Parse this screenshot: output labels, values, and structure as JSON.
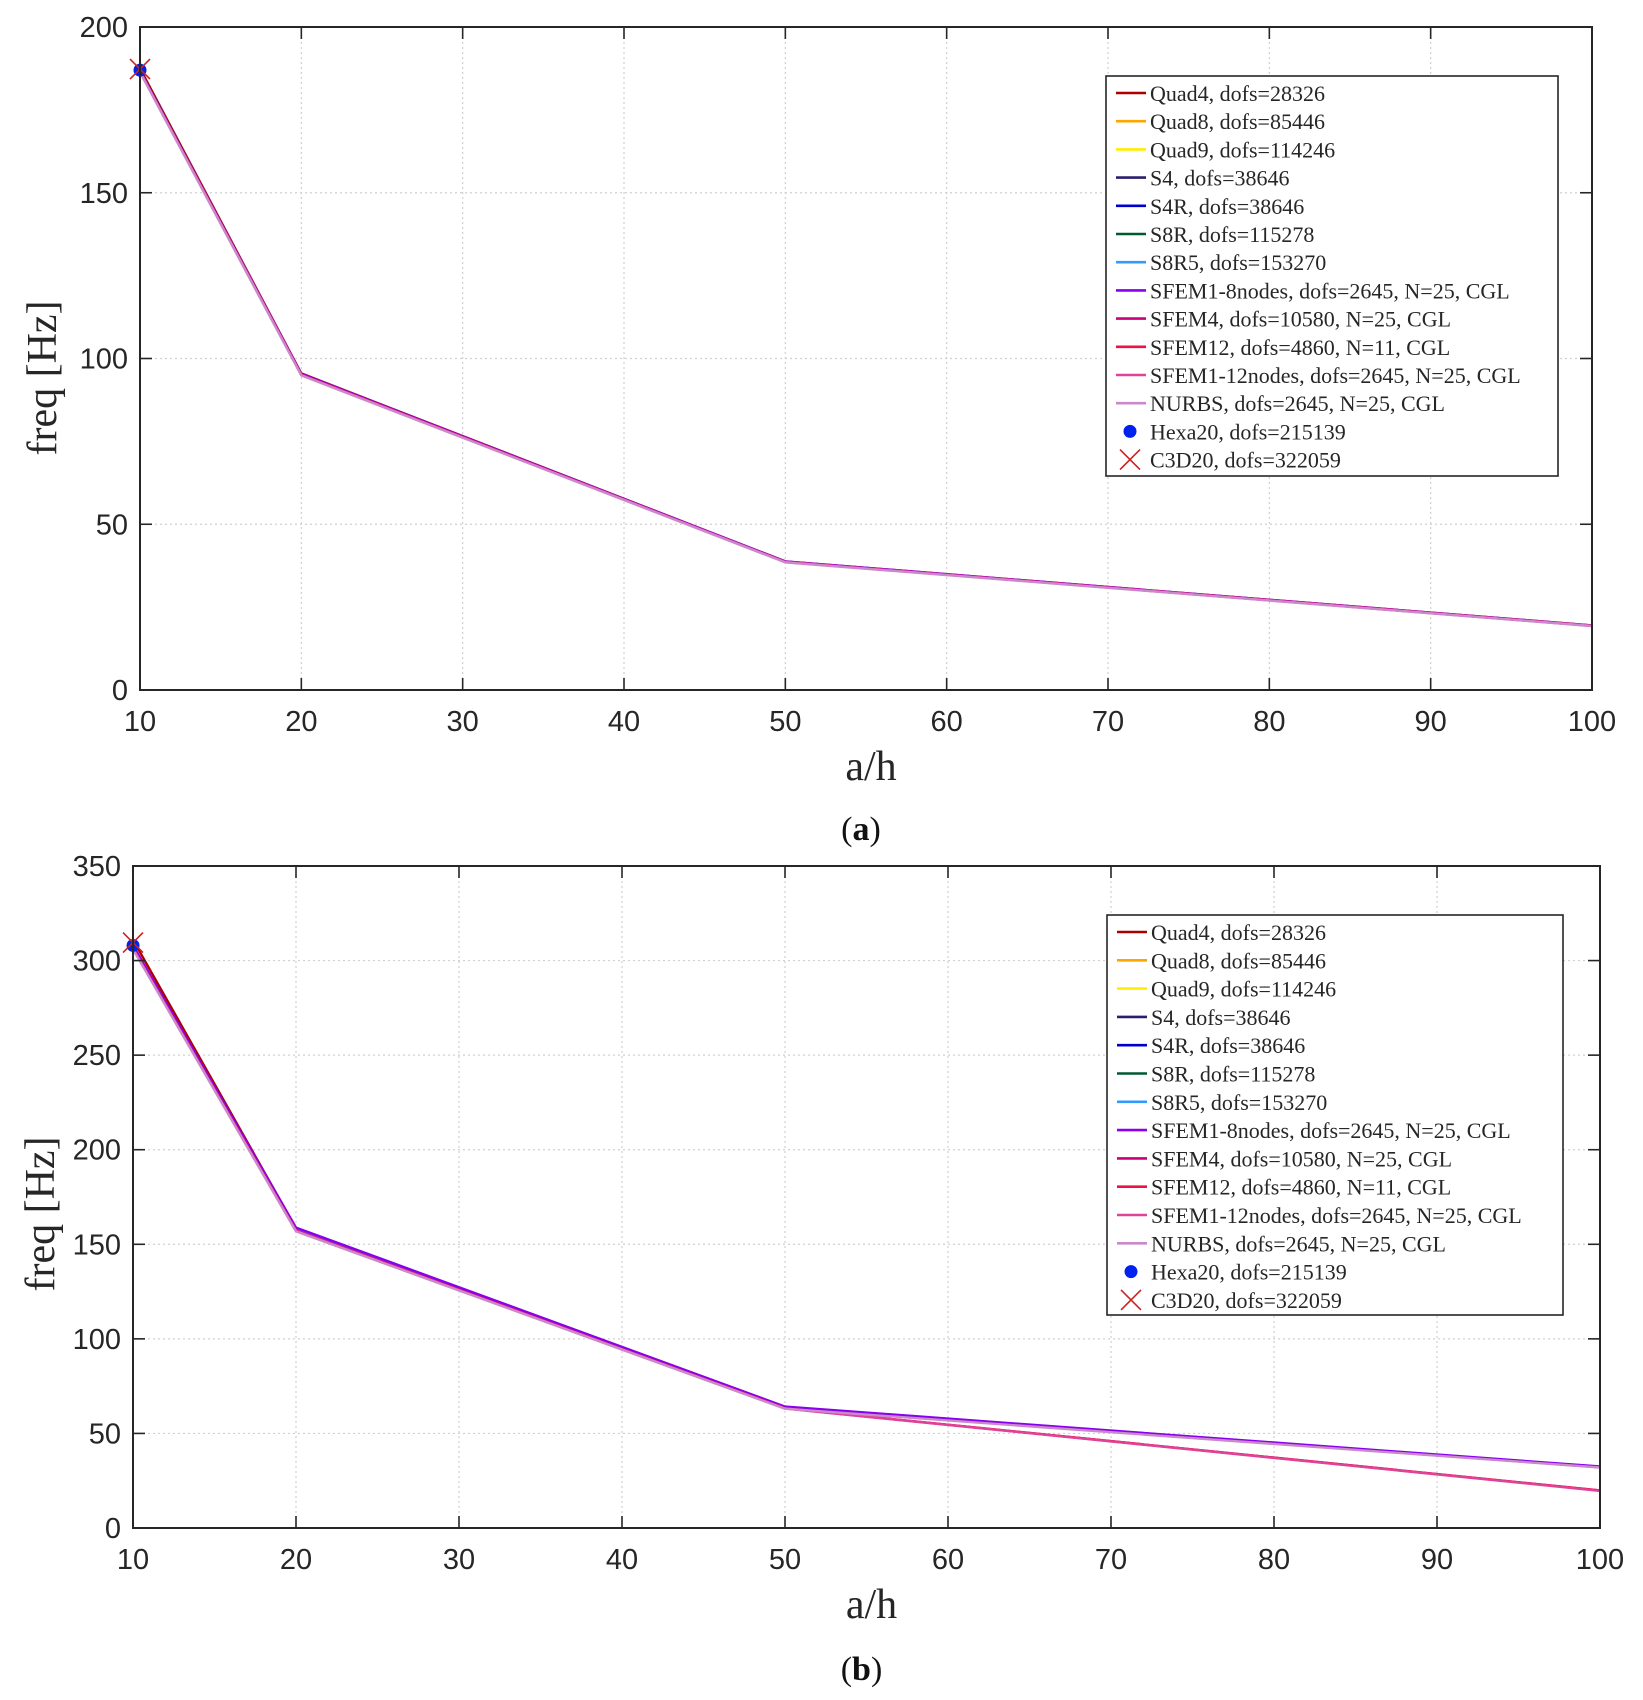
{
  "chart_data": [
    {
      "panel_label": "(a)",
      "type": "line",
      "xlabel": "a/h",
      "ylabel": "freq [Hz]",
      "xlim": [
        10,
        100
      ],
      "ylim": [
        0,
        200
      ],
      "xticks": [
        "10",
        "20",
        "30",
        "40",
        "50",
        "60",
        "70",
        "80",
        "90",
        "100"
      ],
      "yticks": [
        "0",
        "50",
        "100",
        "150",
        "200"
      ],
      "x": [
        10,
        20,
        50,
        100
      ],
      "series": [
        {
          "name": "Quad4, dofs=28326",
          "color": "#aa0000",
          "marker": "none",
          "values": [
            187.5,
            95.5,
            38.8,
            19.5
          ]
        },
        {
          "name": "Quad8, dofs=85446",
          "color": "#ffa500",
          "marker": "none",
          "values": [
            186.8,
            95.3,
            38.7,
            19.4
          ]
        },
        {
          "name": "Quad9, dofs=114246",
          "color": "#ffee00",
          "marker": "none",
          "values": [
            186.8,
            95.3,
            38.7,
            19.4
          ]
        },
        {
          "name": "S4, dofs=38646",
          "color": "#2a1f6e",
          "marker": "none",
          "values": [
            186.9,
            95.3,
            38.7,
            19.4
          ]
        },
        {
          "name": "S4R, dofs=38646",
          "color": "#0000cc",
          "marker": "none",
          "values": [
            186.8,
            95.2,
            38.7,
            19.4
          ]
        },
        {
          "name": "S8R, dofs=115278",
          "color": "#005a30",
          "marker": "none",
          "values": [
            186.7,
            95.2,
            38.7,
            19.4
          ]
        },
        {
          "name": "S8R5, dofs=153270",
          "color": "#3399ff",
          "marker": "none",
          "values": [
            186.7,
            95.2,
            38.7,
            19.4
          ]
        },
        {
          "name": "SFEM1-8nodes, dofs=2645, N=25, CGL",
          "color": "#8800ee",
          "marker": "none",
          "values": [
            186.8,
            95.4,
            38.8,
            19.5
          ]
        },
        {
          "name": "SFEM4, dofs=10580, N=25, CGL",
          "color": "#cc0077",
          "marker": "none",
          "values": [
            186.6,
            95.1,
            38.6,
            19.4
          ]
        },
        {
          "name": "SFEM12, dofs=4860, N=11, CGL",
          "color": "#ee1144",
          "marker": "none",
          "values": [
            186.6,
            95.1,
            38.6,
            19.4
          ]
        },
        {
          "name": "SFEM1-12nodes, dofs=2645, N=25, CGL",
          "color": "#dd4499",
          "marker": "none",
          "values": [
            186.5,
            95.0,
            38.6,
            19.3
          ]
        },
        {
          "name": "NURBS, dofs=2645, N=25, CGL",
          "color": "#cc88cc",
          "marker": "none",
          "values": [
            186.4,
            94.9,
            38.5,
            19.3
          ]
        },
        {
          "name": "Hexa20, dofs=215139",
          "color": "#0022ee",
          "marker": "dot",
          "values": [
            187.0,
            null,
            null,
            null
          ]
        },
        {
          "name": "C3D20, dofs=322059",
          "color": "#cc2222",
          "marker": "x",
          "values": [
            187.3,
            null,
            null,
            null
          ]
        }
      ]
    },
    {
      "panel_label": "(b)",
      "type": "line",
      "xlabel": "a/h",
      "ylabel": "freq [Hz]",
      "xlim": [
        10,
        100
      ],
      "ylim": [
        0,
        350
      ],
      "xticks": [
        "10",
        "20",
        "30",
        "40",
        "50",
        "60",
        "70",
        "80",
        "90",
        "100"
      ],
      "yticks": [
        "0",
        "50",
        "100",
        "150",
        "200",
        "250",
        "300",
        "350"
      ],
      "x": [
        10,
        20,
        50,
        100
      ],
      "series": [
        {
          "name": "Quad4, dofs=28326",
          "color": "#aa0000",
          "marker": "none",
          "values": [
            311,
            158.5,
            64.0,
            32.3
          ]
        },
        {
          "name": "Quad8, dofs=85446",
          "color": "#ffa500",
          "marker": "none",
          "values": [
            307.5,
            158.0,
            63.8,
            32.1
          ]
        },
        {
          "name": "Quad9, dofs=114246",
          "color": "#ffee00",
          "marker": "none",
          "values": [
            307.5,
            158.0,
            63.8,
            32.1
          ]
        },
        {
          "name": "S4, dofs=38646",
          "color": "#2a1f6e",
          "marker": "none",
          "values": [
            307.8,
            158.2,
            63.9,
            32.2
          ]
        },
        {
          "name": "S4R, dofs=38646",
          "color": "#0000cc",
          "marker": "none",
          "values": [
            307.6,
            158.1,
            63.8,
            32.2
          ]
        },
        {
          "name": "S8R, dofs=115278",
          "color": "#005a30",
          "marker": "none",
          "values": [
            307.3,
            157.9,
            63.7,
            32.1
          ]
        },
        {
          "name": "S8R5, dofs=153270",
          "color": "#3399ff",
          "marker": "none",
          "values": [
            307.3,
            157.9,
            63.7,
            32.1
          ]
        },
        {
          "name": "SFEM1-8nodes, dofs=2645, N=25, CGL",
          "color": "#8800ee",
          "marker": "none",
          "values": [
            308.0,
            158.8,
            64.2,
            32.5
          ]
        },
        {
          "name": "SFEM4, dofs=10580, N=25, CGL",
          "color": "#cc0077",
          "marker": "none",
          "values": [
            306.5,
            157.3,
            63.3,
            19.8
          ]
        },
        {
          "name": "SFEM12, dofs=4860, N=11, CGL",
          "color": "#ee1144",
          "marker": "none",
          "values": [
            306.5,
            157.3,
            63.3,
            19.8
          ]
        },
        {
          "name": "SFEM1-12nodes, dofs=2645, N=25, CGL",
          "color": "#dd4499",
          "marker": "none",
          "values": [
            306.2,
            157.0,
            63.2,
            19.6
          ]
        },
        {
          "name": "NURBS, dofs=2645, N=25, CGL",
          "color": "#cc88cc",
          "marker": "none",
          "values": [
            306.0,
            156.8,
            63.1,
            32.0
          ]
        },
        {
          "name": "Hexa20, dofs=215139",
          "color": "#0022ee",
          "marker": "dot",
          "values": [
            308.0,
            null,
            null,
            null
          ]
        },
        {
          "name": "C3D20, dofs=322059",
          "color": "#cc2222",
          "marker": "x",
          "values": [
            309.5,
            null,
            null,
            null
          ]
        }
      ]
    }
  ]
}
